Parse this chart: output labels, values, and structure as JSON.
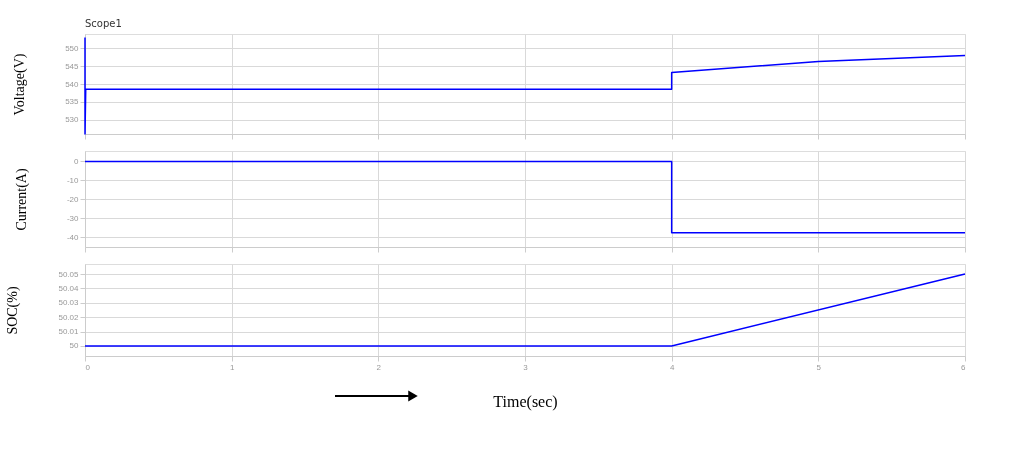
{
  "chart_data": [
    {
      "type": "line",
      "ylabel": "Voltage(V)",
      "annotations": [
        "Scope1"
      ],
      "x": [
        0,
        0,
        0.005,
        4,
        4,
        5,
        6
      ],
      "series": [
        {
          "color": "#0000ff",
          "values": [
            553,
            526,
            538.5,
            538.5,
            543.2,
            546.3,
            548
          ]
        }
      ],
      "xlim": [
        0,
        6
      ],
      "xticks": [
        0,
        1,
        2,
        3,
        4,
        5,
        6
      ],
      "ylim": [
        526,
        554
      ],
      "yticks": [
        530,
        535,
        540,
        545,
        550
      ],
      "grid": true,
      "tick_labels": "y"
    },
    {
      "type": "line",
      "ylabel": "Current(A)",
      "x": [
        0,
        4,
        4,
        6
      ],
      "series": [
        {
          "color": "#0000ff",
          "values": [
            0,
            0,
            -37.5,
            -37.5
          ]
        }
      ],
      "xlim": [
        0,
        6
      ],
      "xticks": [
        0,
        1,
        2,
        3,
        4,
        5,
        6
      ],
      "ylim": [
        -45,
        5.5
      ],
      "yticks": [
        -40,
        -30,
        -20,
        -10,
        0
      ],
      "grid": true,
      "tick_labels": "y"
    },
    {
      "type": "line",
      "ylabel": "SOC(%)",
      "xlabel": "Time(sec)",
      "x": [
        0,
        4,
        6
      ],
      "series": [
        {
          "color": "#0000ff",
          "values": [
            50,
            50,
            50.05
          ]
        }
      ],
      "xlim": [
        0,
        6
      ],
      "xticks": [
        0,
        1,
        2,
        3,
        4,
        5,
        6
      ],
      "ylim": [
        49.993,
        50.057
      ],
      "yticks": [
        50,
        50.01,
        50.02,
        50.03,
        50.04,
        50.05
      ],
      "grid": true
    }
  ]
}
